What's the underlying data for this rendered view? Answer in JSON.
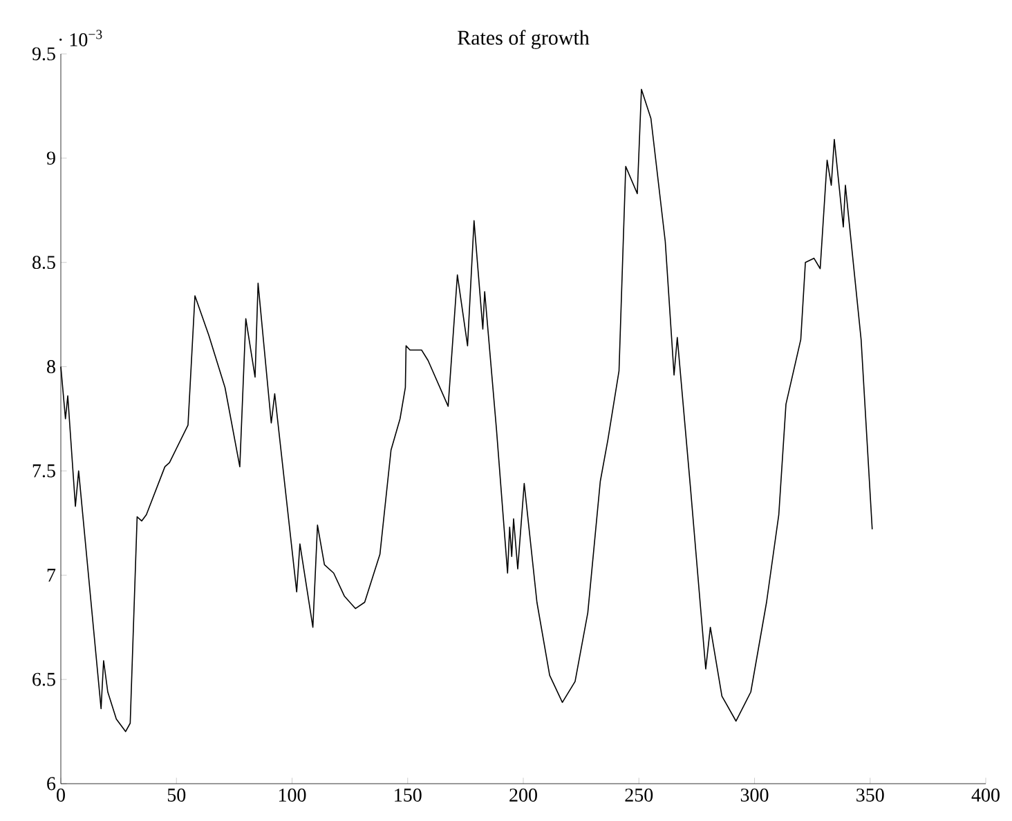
{
  "chart_data": {
    "type": "line",
    "title": "Rates of growth",
    "annotations": [
      "· 10$^{−3}$"
    ],
    "xlim": [
      0,
      400
    ],
    "xticks": [
      0,
      50,
      100,
      150,
      200,
      250,
      300,
      350,
      400
    ],
    "ylim": [
      6,
      9.5
    ],
    "yticks": [
      6,
      6.5,
      7,
      7.5,
      8,
      8.5,
      9,
      9.5
    ],
    "grid": false,
    "marker": "none",
    "line_style": "solid",
    "series": [
      {
        "color": "#000000",
        "x": [
          0,
          2,
          3,
          6.3,
          7.7,
          17.4,
          18.5,
          20.3,
          24,
          28,
          30,
          33,
          35,
          37,
          45,
          47,
          55,
          58,
          64,
          71,
          77.4,
          80,
          84,
          85.3,
          91,
          92.5,
          102,
          103.4,
          109,
          111,
          114,
          118,
          122.6,
          127.4,
          131.4,
          138,
          142.8,
          146.7,
          149,
          149.3,
          151,
          156,
          158.8,
          167.5,
          171.5,
          175.9,
          178.7,
          182.5,
          183.3,
          188.4,
          193.2,
          194.1,
          195,
          195.8,
          197.6,
          200.4,
          205.9,
          211.4,
          216.9,
          222.4,
          227.9,
          233.3,
          236.6,
          241.4,
          244.3,
          249.3,
          251.1,
          255.2,
          261.4,
          265.2,
          266.6,
          272.3,
          278.9,
          280.9,
          285.9,
          292,
          298.4,
          305.2,
          310.5,
          313.6,
          320,
          322,
          325.7,
          328.4,
          331.4,
          333.2,
          334.5,
          338.4,
          339.3,
          346.1,
          350.9
        ],
        "values": [
          8.0,
          7.75,
          7.86,
          7.33,
          7.5,
          6.36,
          6.59,
          6.44,
          6.31,
          6.25,
          6.29,
          7.28,
          7.26,
          7.29,
          7.52,
          7.54,
          7.72,
          8.34,
          8.15,
          7.9,
          7.52,
          8.23,
          7.95,
          8.4,
          7.73,
          7.87,
          6.92,
          7.15,
          6.75,
          7.24,
          7.05,
          7.01,
          6.9,
          6.84,
          6.87,
          7.1,
          7.6,
          7.75,
          7.9,
          8.1,
          8.08,
          8.08,
          8.03,
          7.81,
          8.44,
          8.1,
          8.7,
          8.18,
          8.36,
          7.7,
          7.01,
          7.23,
          7.09,
          7.27,
          7.03,
          7.44,
          6.87,
          6.52,
          6.39,
          6.49,
          6.82,
          7.45,
          7.65,
          7.98,
          8.96,
          8.83,
          9.33,
          9.19,
          8.6,
          7.96,
          8.14,
          7.42,
          6.55,
          6.75,
          6.42,
          6.3,
          6.44,
          6.87,
          7.29,
          7.82,
          8.13,
          8.5,
          8.52,
          8.47,
          8.99,
          8.87,
          9.09,
          8.67,
          8.87,
          8.13,
          7.22
        ]
      }
    ]
  }
}
